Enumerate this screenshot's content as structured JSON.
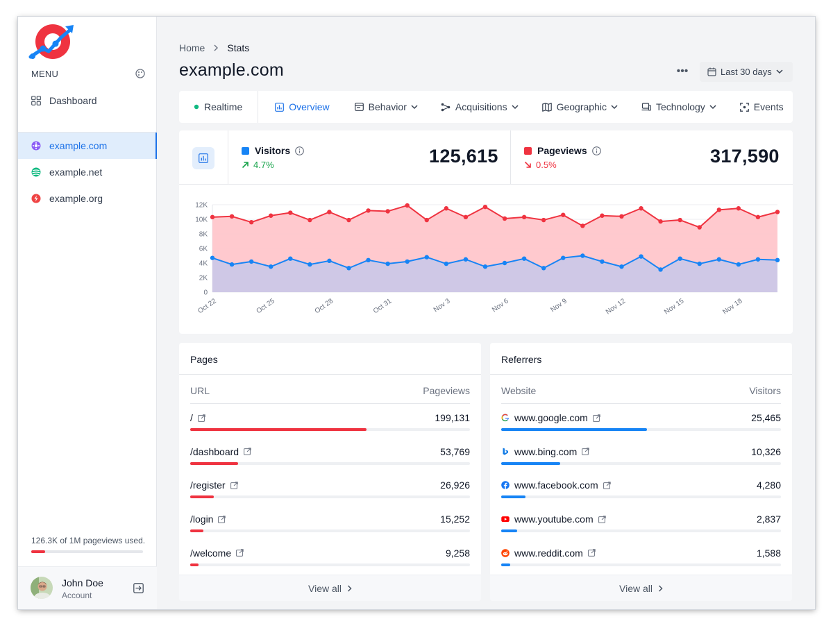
{
  "sidebar": {
    "menu_label": "MENU",
    "dashboard_label": "Dashboard",
    "sites": [
      {
        "label": "example.com",
        "active": true,
        "color": "#8b5cf6"
      },
      {
        "label": "example.net",
        "active": false,
        "color": "#10b981"
      },
      {
        "label": "example.org",
        "active": false,
        "color": "#ef4444"
      }
    ],
    "usage_text": "126.3K of 1M pageviews used.",
    "usage_fraction": 0.1263,
    "account": {
      "name": "John Doe",
      "subtitle": "Account"
    }
  },
  "header": {
    "breadcrumb_home": "Home",
    "breadcrumb_current": "Stats",
    "title": "example.com",
    "more": "•••",
    "range_label": "Last 30 days"
  },
  "tabs": [
    {
      "label": "Realtime",
      "icon": "live-dot-icon",
      "dropdown": false,
      "active": false
    },
    {
      "label": "Overview",
      "icon": "chart-icon",
      "dropdown": false,
      "active": true
    },
    {
      "label": "Behavior",
      "icon": "window-icon",
      "dropdown": true,
      "active": false
    },
    {
      "label": "Acquisitions",
      "icon": "network-icon",
      "dropdown": true,
      "active": false
    },
    {
      "label": "Geographic",
      "icon": "map-icon",
      "dropdown": true,
      "active": false
    },
    {
      "label": "Technology",
      "icon": "devices-icon",
      "dropdown": true,
      "active": false
    },
    {
      "label": "Events",
      "icon": "focus-icon",
      "dropdown": false,
      "active": false
    }
  ],
  "stats": {
    "visitors": {
      "label": "Visitors",
      "change": "4.7%",
      "direction": "up",
      "value": "125,615",
      "color": "#1784f5"
    },
    "pageviews": {
      "label": "Pageviews",
      "change": "0.5%",
      "direction": "down",
      "value": "317,590",
      "color": "#ef3340"
    }
  },
  "chart_data": {
    "type": "area",
    "x": [
      "Oct 22",
      "Oct 23",
      "Oct 24",
      "Oct 25",
      "Oct 26",
      "Oct 27",
      "Oct 28",
      "Oct 29",
      "Oct 30",
      "Oct 31",
      "Nov 1",
      "Nov 2",
      "Nov 3",
      "Nov 4",
      "Nov 5",
      "Nov 6",
      "Nov 7",
      "Nov 8",
      "Nov 9",
      "Nov 10",
      "Nov 11",
      "Nov 12",
      "Nov 13",
      "Nov 14",
      "Nov 15",
      "Nov 16",
      "Nov 17",
      "Nov 18",
      "Nov 19",
      "Nov 20"
    ],
    "x_tick_labels": [
      "Oct 22",
      "Oct 25",
      "Oct 28",
      "Oct 31",
      "Nov 3",
      "Nov 6",
      "Nov 9",
      "Nov 12",
      "Nov 15",
      "Nov 18"
    ],
    "series": [
      {
        "name": "Pageviews",
        "color": "#ef3340",
        "values": [
          10300,
          10400,
          9600,
          10500,
          10900,
          9900,
          11000,
          9900,
          11200,
          11100,
          11900,
          9900,
          11500,
          10300,
          11700,
          10100,
          10300,
          9900,
          10600,
          9100,
          10500,
          10400,
          11500,
          9700,
          9900,
          8900,
          11300,
          11500,
          10300,
          11000
        ]
      },
      {
        "name": "Visitors",
        "color": "#1784f5",
        "values": [
          4700,
          3800,
          4200,
          3500,
          4600,
          3800,
          4300,
          3300,
          4400,
          3900,
          4200,
          4800,
          3900,
          4500,
          3500,
          4000,
          4600,
          3300,
          4700,
          5000,
          4200,
          3500,
          4900,
          3100,
          4600,
          3900,
          4500,
          3800,
          4500,
          4400
        ]
      }
    ],
    "ylim": [
      0,
      12000
    ],
    "y_ticks": [
      "0",
      "2K",
      "4K",
      "6K",
      "8K",
      "10K",
      "12K"
    ],
    "grid": true
  },
  "pages": {
    "title": "Pages",
    "col_left": "URL",
    "col_right": "Pageviews",
    "bar_color": "#ef3340",
    "rows": [
      {
        "label": "/",
        "value": "199,131",
        "fraction": 0.63
      },
      {
        "label": "/dashboard",
        "value": "53,769",
        "fraction": 0.17
      },
      {
        "label": "/register",
        "value": "26,926",
        "fraction": 0.085
      },
      {
        "label": "/login",
        "value": "15,252",
        "fraction": 0.048
      },
      {
        "label": "/welcome",
        "value": "9,258",
        "fraction": 0.03
      }
    ],
    "footer": "View all"
  },
  "referrers": {
    "title": "Referrers",
    "col_left": "Website",
    "col_right": "Visitors",
    "bar_color": "#1784f5",
    "rows": [
      {
        "label": "www.google.com",
        "value": "25,465",
        "fraction": 0.52,
        "icon": "google-icon"
      },
      {
        "label": "www.bing.com",
        "value": "10,326",
        "fraction": 0.21,
        "icon": "bing-icon"
      },
      {
        "label": "www.facebook.com",
        "value": "4,280",
        "fraction": 0.088,
        "icon": "facebook-icon"
      },
      {
        "label": "www.youtube.com",
        "value": "2,837",
        "fraction": 0.058,
        "icon": "youtube-icon"
      },
      {
        "label": "www.reddit.com",
        "value": "1,588",
        "fraction": 0.032,
        "icon": "reddit-icon"
      }
    ],
    "footer": "View all"
  }
}
